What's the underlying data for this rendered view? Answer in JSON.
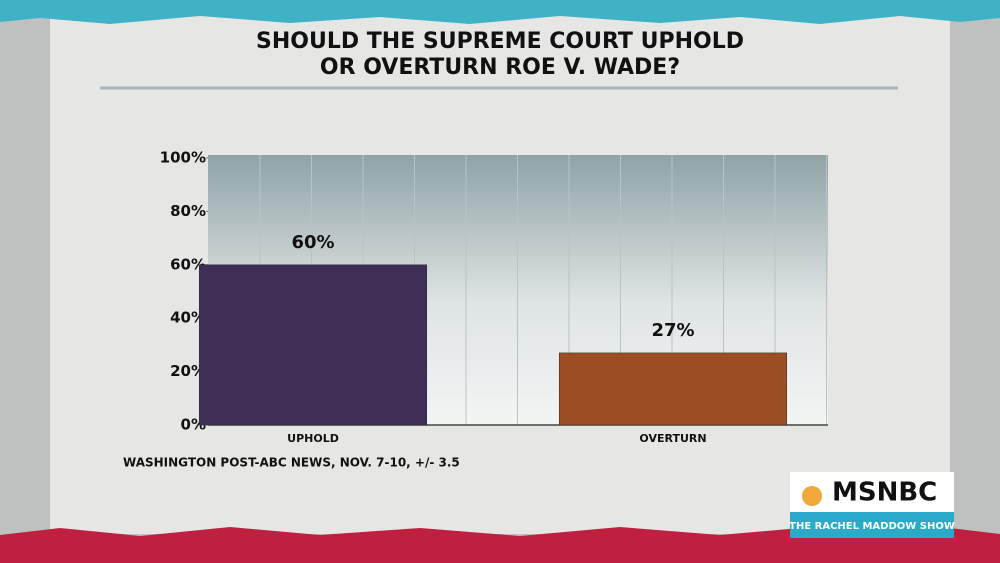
{
  "chart_data": {
    "type": "bar",
    "title": [
      "SHOULD THE SUPREME COURT UPHOLD",
      "OR OVERTURN ROE V. WADE?"
    ],
    "categories": [
      "UPHOLD",
      "OVERTURN"
    ],
    "values": [
      60,
      27
    ],
    "value_labels": [
      "60%",
      "27%"
    ],
    "colors": [
      "#3f2f56",
      "#9b4f22"
    ],
    "ylim": [
      0,
      100
    ],
    "yticks": [
      {
        "value": 0,
        "label": "0%"
      },
      {
        "value": 20,
        "label": "20%"
      },
      {
        "value": 40,
        "label": "40%"
      },
      {
        "value": 60,
        "label": "60%"
      },
      {
        "value": 80,
        "label": "80%"
      },
      {
        "value": 100,
        "label": "100%"
      }
    ],
    "source": "WASHINGTON POST-ABC NEWS, NOV. 7-10, +/- 3.5"
  },
  "branding": {
    "network": "MSNBC",
    "show": "THE RACHEL MADDOW SHOW"
  }
}
